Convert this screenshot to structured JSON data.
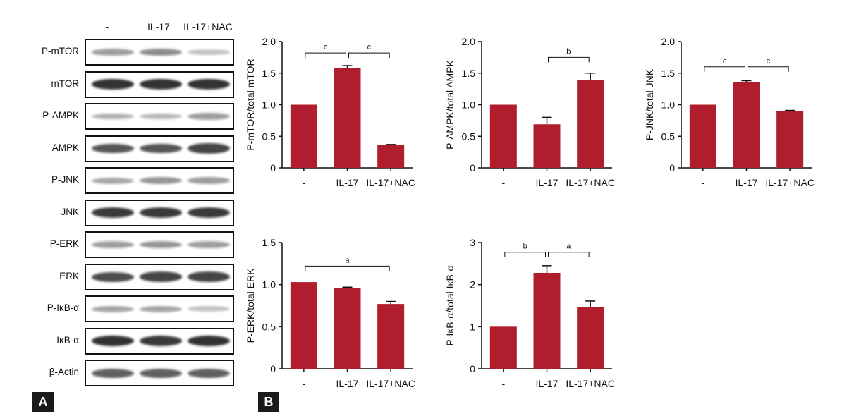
{
  "panel_a": {
    "tag": "A",
    "lanes": [
      "-",
      "IL-17",
      "IL-17+NAC"
    ],
    "rows": [
      {
        "label": "P-mTOR",
        "intensity": [
          0.35,
          0.45,
          0.15
        ]
      },
      {
        "label": "mTOR",
        "intensity": [
          0.95,
          0.95,
          0.95
        ]
      },
      {
        "label": "P-AMPK",
        "intensity": [
          0.25,
          0.2,
          0.35
        ]
      },
      {
        "label": "AMPK",
        "intensity": [
          0.75,
          0.75,
          0.85
        ]
      },
      {
        "label": "P-JNK",
        "intensity": [
          0.3,
          0.4,
          0.35
        ]
      },
      {
        "label": "JNK",
        "intensity": [
          0.9,
          0.9,
          0.9
        ]
      },
      {
        "label": "P-ERK",
        "intensity": [
          0.35,
          0.4,
          0.35
        ]
      },
      {
        "label": "ERK",
        "intensity": [
          0.8,
          0.85,
          0.85
        ]
      },
      {
        "label": "P-IκB-α",
        "intensity": [
          0.3,
          0.3,
          0.15
        ]
      },
      {
        "label": "IκB-α",
        "intensity": [
          0.95,
          0.9,
          0.95
        ]
      },
      {
        "label": "β-Actin",
        "intensity": [
          0.7,
          0.7,
          0.7
        ]
      }
    ]
  },
  "panel_b": {
    "tag": "B"
  },
  "colors": {
    "bar": "#b01e2d",
    "axis": "#111111"
  },
  "chart_data": [
    {
      "type": "bar",
      "title": "",
      "xlabel": "",
      "ylabel": "P-mTOR/total mTOR",
      "categories": [
        "-",
        "IL-17",
        "IL-17+NAC"
      ],
      "values": [
        1.0,
        1.58,
        0.36
      ],
      "errors": [
        0,
        0.04,
        0.01
      ],
      "ylim": [
        0,
        2.0
      ],
      "yticks": [
        "0",
        "0.5",
        "1.0",
        "1.5",
        "2.0"
      ],
      "brackets": [
        {
          "from": 0,
          "to": 1,
          "label": "c",
          "y": 1.82
        },
        {
          "from": 1,
          "to": 2,
          "label": "c",
          "y": 1.82
        }
      ]
    },
    {
      "type": "bar",
      "title": "",
      "xlabel": "",
      "ylabel": "P-AMPK/total AMPK",
      "categories": [
        "-",
        "IL-17",
        "IL-17+NAC"
      ],
      "values": [
        1.0,
        0.69,
        1.39
      ],
      "errors": [
        0,
        0.11,
        0.11
      ],
      "ylim": [
        0,
        2.0
      ],
      "yticks": [
        "0",
        "0.5",
        "1.0",
        "1.5",
        "2.0"
      ],
      "brackets": [
        {
          "from": 1,
          "to": 2,
          "label": "b",
          "y": 1.75
        }
      ]
    },
    {
      "type": "bar",
      "title": "",
      "xlabel": "",
      "ylabel": "P-JNK/total JNK",
      "categories": [
        "-",
        "IL-17",
        "IL-17+NAC"
      ],
      "values": [
        1.0,
        1.36,
        0.9
      ],
      "errors": [
        0,
        0.02,
        0.01
      ],
      "ylim": [
        0,
        2.0
      ],
      "yticks": [
        "0",
        "0.5",
        "1.0",
        "1.5",
        "2.0"
      ],
      "brackets": [
        {
          "from": 0,
          "to": 1,
          "label": "c",
          "y": 1.6
        },
        {
          "from": 1,
          "to": 2,
          "label": "c",
          "y": 1.6
        }
      ]
    },
    {
      "type": "bar",
      "title": "",
      "xlabel": "",
      "ylabel": "P-ERK/total ERK",
      "categories": [
        "-",
        "IL-17",
        "IL-17+NAC"
      ],
      "values": [
        1.03,
        0.96,
        0.77
      ],
      "errors": [
        0,
        0.01,
        0.03
      ],
      "ylim": [
        0,
        1.5
      ],
      "yticks": [
        "0",
        "0.5",
        "1.0",
        "1.5"
      ],
      "brackets": [
        {
          "from": 0,
          "to": 2,
          "label": "a",
          "y": 1.22
        }
      ]
    },
    {
      "type": "bar",
      "title": "",
      "xlabel": "",
      "ylabel": "P-IκB-α/total IκB-α",
      "categories": [
        "-",
        "IL-17",
        "IL-17+NAC"
      ],
      "values": [
        1.0,
        2.28,
        1.46
      ],
      "errors": [
        0,
        0.17,
        0.15
      ],
      "ylim": [
        0,
        3
      ],
      "yticks": [
        "0",
        "1",
        "2",
        "3"
      ],
      "brackets": [
        {
          "from": 0,
          "to": 1,
          "label": "b",
          "y": 2.77
        },
        {
          "from": 1,
          "to": 2,
          "label": "a",
          "y": 2.77
        }
      ]
    }
  ]
}
